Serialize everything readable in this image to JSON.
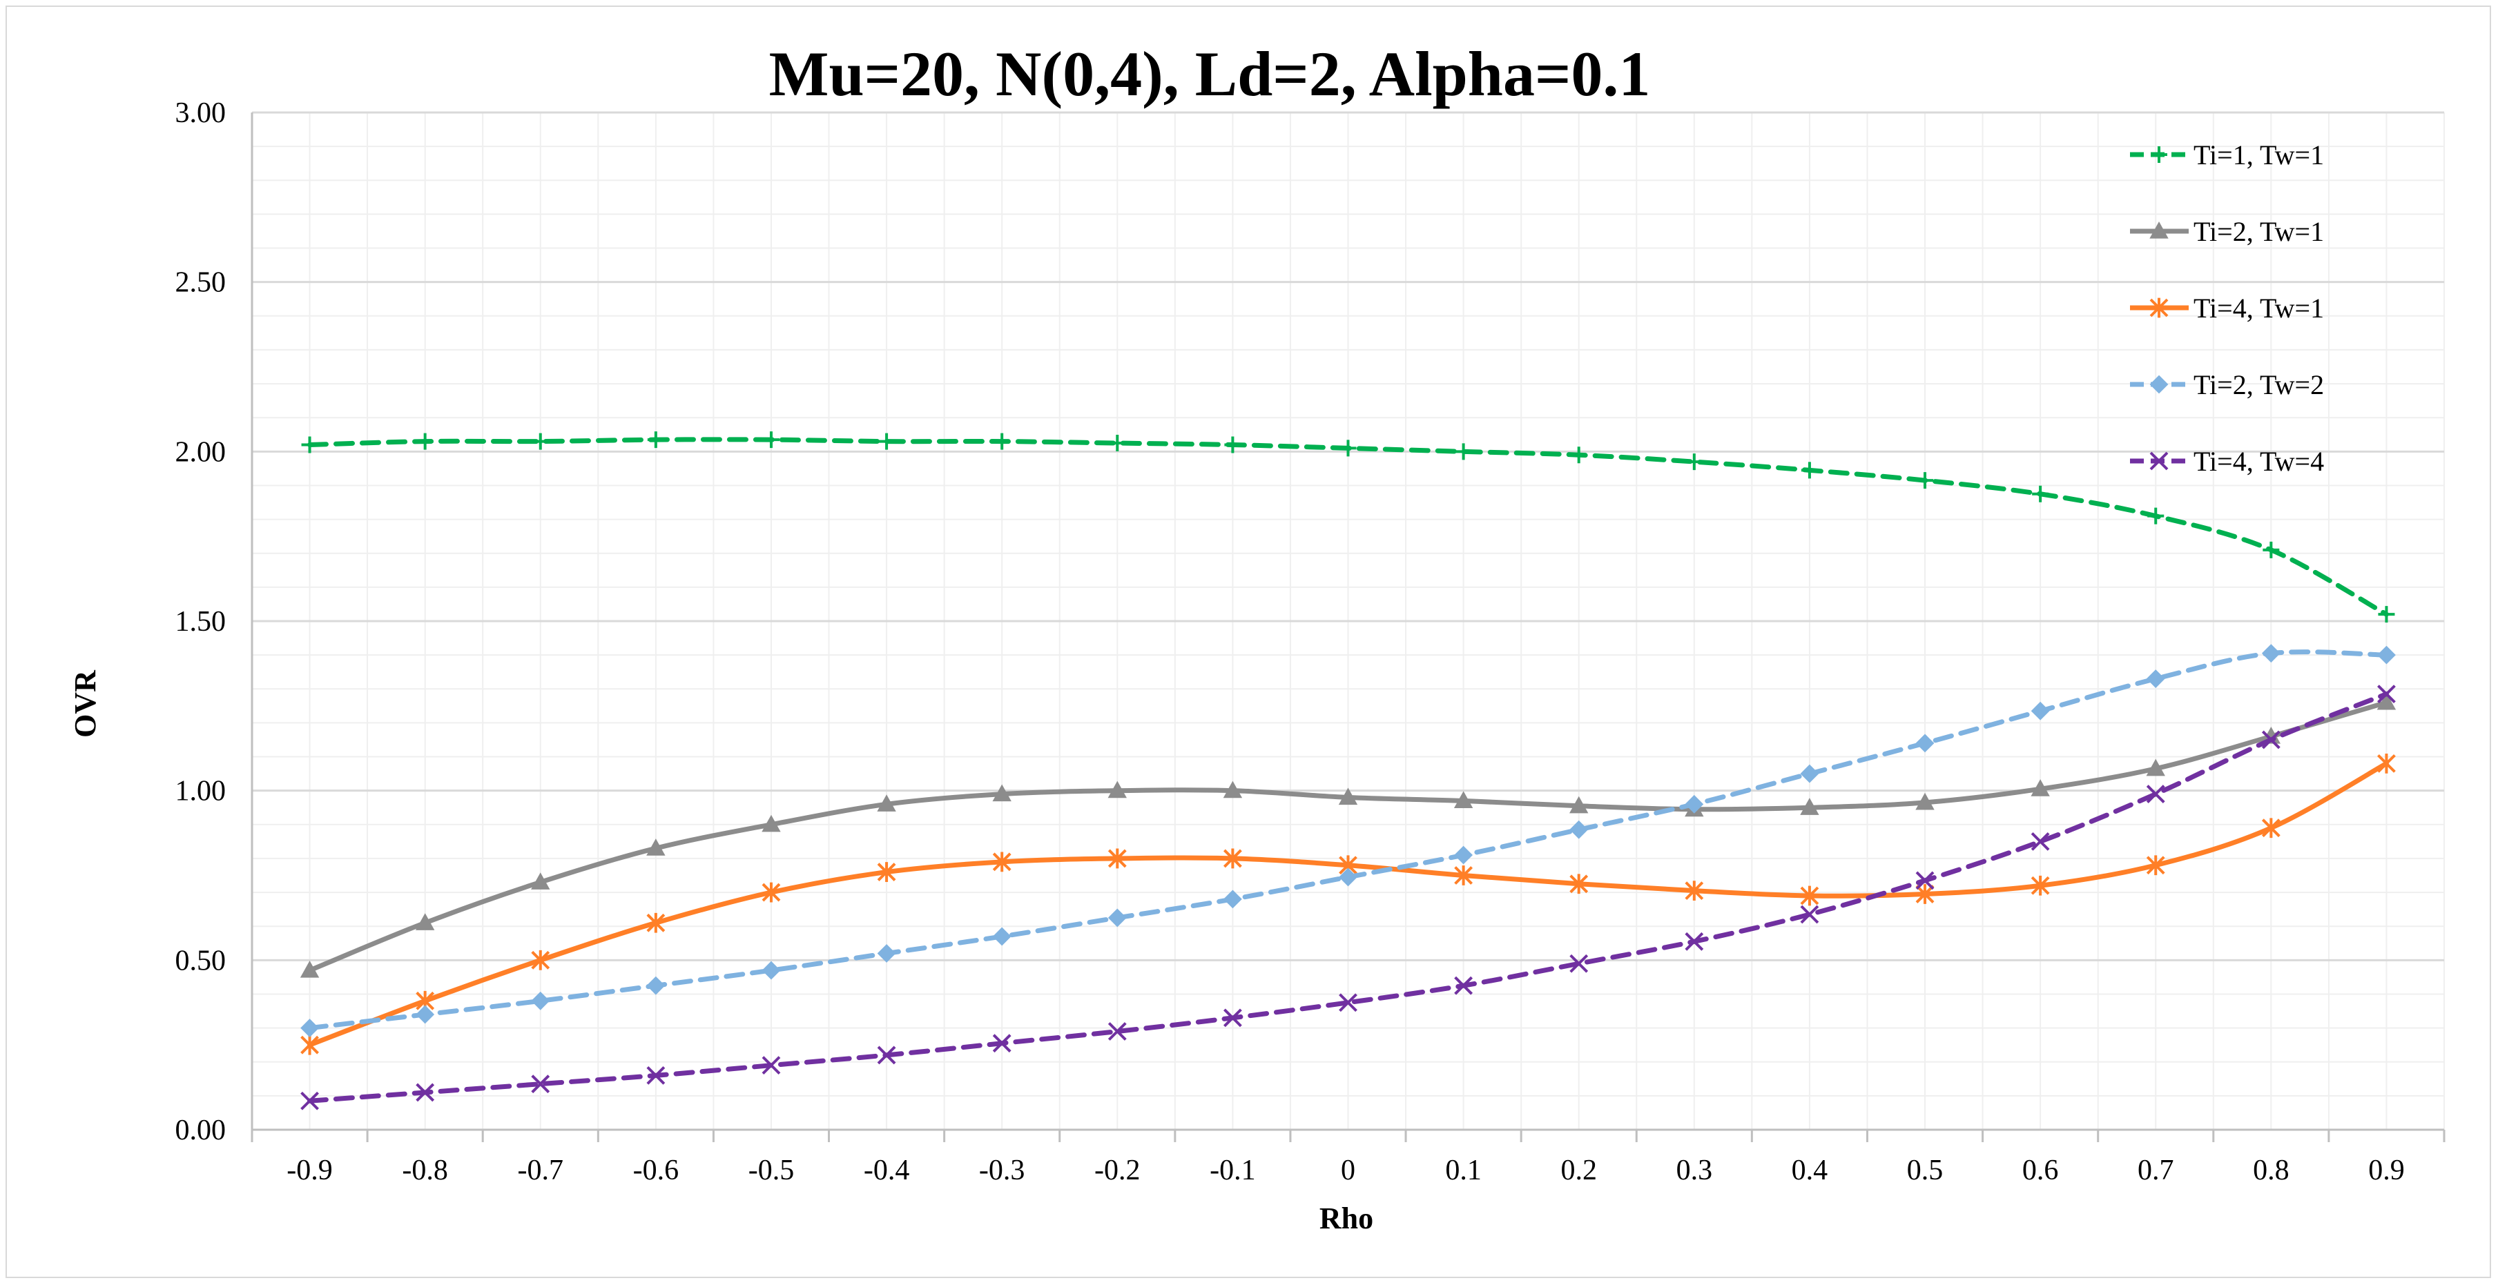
{
  "chart_data": {
    "type": "line",
    "title": "Mu=20, N(0,4), Ld=2, Alpha=0.1",
    "xlabel": "Rho",
    "ylabel": "OVR",
    "x": [
      "-0.9",
      "-0.8",
      "-0.7",
      "-0.6",
      "-0.5",
      "-0.4",
      "-0.3",
      "-0.2",
      "-0.1",
      "0",
      "0.1",
      "0.2",
      "0.3",
      "0.4",
      "0.5",
      "0.6",
      "0.7",
      "0.8",
      "0.9"
    ],
    "ylim": [
      0,
      3
    ],
    "yticks": [
      "0.00",
      "0.50",
      "1.00",
      "1.50",
      "2.00",
      "2.50",
      "3.00"
    ],
    "legend_position": "top-right",
    "grid": true,
    "series": [
      {
        "name": "Ti=1, Tw=1",
        "color": "#00b050",
        "dash": "dashed",
        "marker": "plus",
        "values": [
          2.02,
          2.03,
          2.03,
          2.035,
          2.035,
          2.03,
          2.03,
          2.025,
          2.02,
          2.01,
          2.0,
          1.99,
          1.97,
          1.945,
          1.915,
          1.875,
          1.81,
          1.71,
          1.52
        ]
      },
      {
        "name": "Ti=2, Tw=1",
        "color": "#8c8c8c",
        "dash": "solid",
        "marker": "triangle",
        "values": [
          0.47,
          0.61,
          0.73,
          0.83,
          0.9,
          0.96,
          0.99,
          1.0,
          1.0,
          0.98,
          0.97,
          0.955,
          0.945,
          0.95,
          0.965,
          1.005,
          1.065,
          1.16,
          1.26
        ]
      },
      {
        "name": "Ti=4, Tw=1",
        "color": "#ff7f27",
        "dash": "solid",
        "marker": "asterisk",
        "values": [
          0.25,
          0.38,
          0.5,
          0.61,
          0.7,
          0.76,
          0.79,
          0.8,
          0.8,
          0.78,
          0.75,
          0.725,
          0.705,
          0.69,
          0.695,
          0.72,
          0.78,
          0.89,
          1.08
        ]
      },
      {
        "name": "Ti=2, Tw=2",
        "color": "#7fb2e0",
        "dash": "dashed",
        "marker": "diamond",
        "values": [
          0.3,
          0.34,
          0.38,
          0.425,
          0.47,
          0.52,
          0.57,
          0.625,
          0.68,
          0.745,
          0.81,
          0.885,
          0.96,
          1.05,
          1.14,
          1.235,
          1.33,
          1.405,
          1.4
        ]
      },
      {
        "name": "Ti=4, Tw=4",
        "color": "#7030a0",
        "dash": "dashed",
        "marker": "x",
        "values": [
          0.085,
          0.11,
          0.135,
          0.16,
          0.19,
          0.22,
          0.255,
          0.29,
          0.33,
          0.375,
          0.425,
          0.49,
          0.555,
          0.635,
          0.735,
          0.85,
          0.99,
          1.15,
          1.285
        ]
      }
    ]
  }
}
